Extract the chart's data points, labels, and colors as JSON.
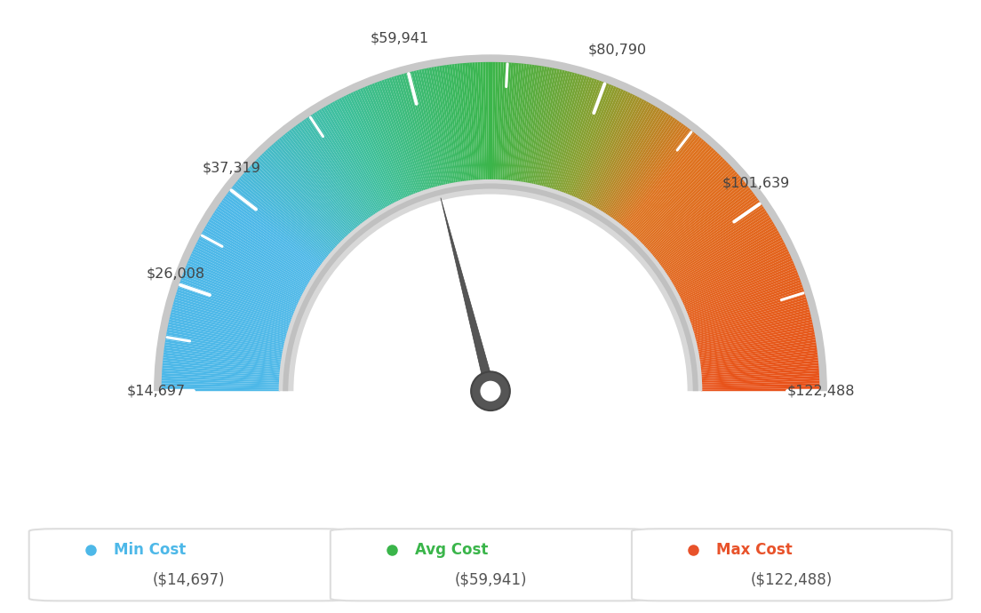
{
  "min_val": 14697,
  "avg_val": 59941,
  "max_val": 122488,
  "label_values": [
    14697,
    26008,
    37319,
    59941,
    80790,
    101639,
    122488
  ],
  "label_texts": [
    "$14,697",
    "$26,008",
    "$37,319",
    "$59,941",
    "$80,790",
    "$101,639",
    "$122,488"
  ],
  "min_color": "#4db8e8",
  "avg_color": "#3ab54a",
  "max_color": "#e8522a",
  "legend_labels": [
    "Min Cost",
    "Avg Cost",
    "Max Cost"
  ],
  "legend_values": [
    "($14,697)",
    "($59,941)",
    "($122,488)"
  ],
  "background_color": "#ffffff",
  "color_stops": [
    [
      0.0,
      [
        0.3,
        0.72,
        0.91
      ]
    ],
    [
      0.2,
      [
        0.3,
        0.72,
        0.91
      ]
    ],
    [
      0.35,
      [
        0.24,
        0.75,
        0.6
      ]
    ],
    [
      0.5,
      [
        0.23,
        0.71,
        0.29
      ]
    ],
    [
      0.62,
      [
        0.55,
        0.62,
        0.18
      ]
    ],
    [
      0.72,
      [
        0.87,
        0.45,
        0.12
      ]
    ],
    [
      1.0,
      [
        0.91,
        0.32,
        0.1
      ]
    ]
  ]
}
